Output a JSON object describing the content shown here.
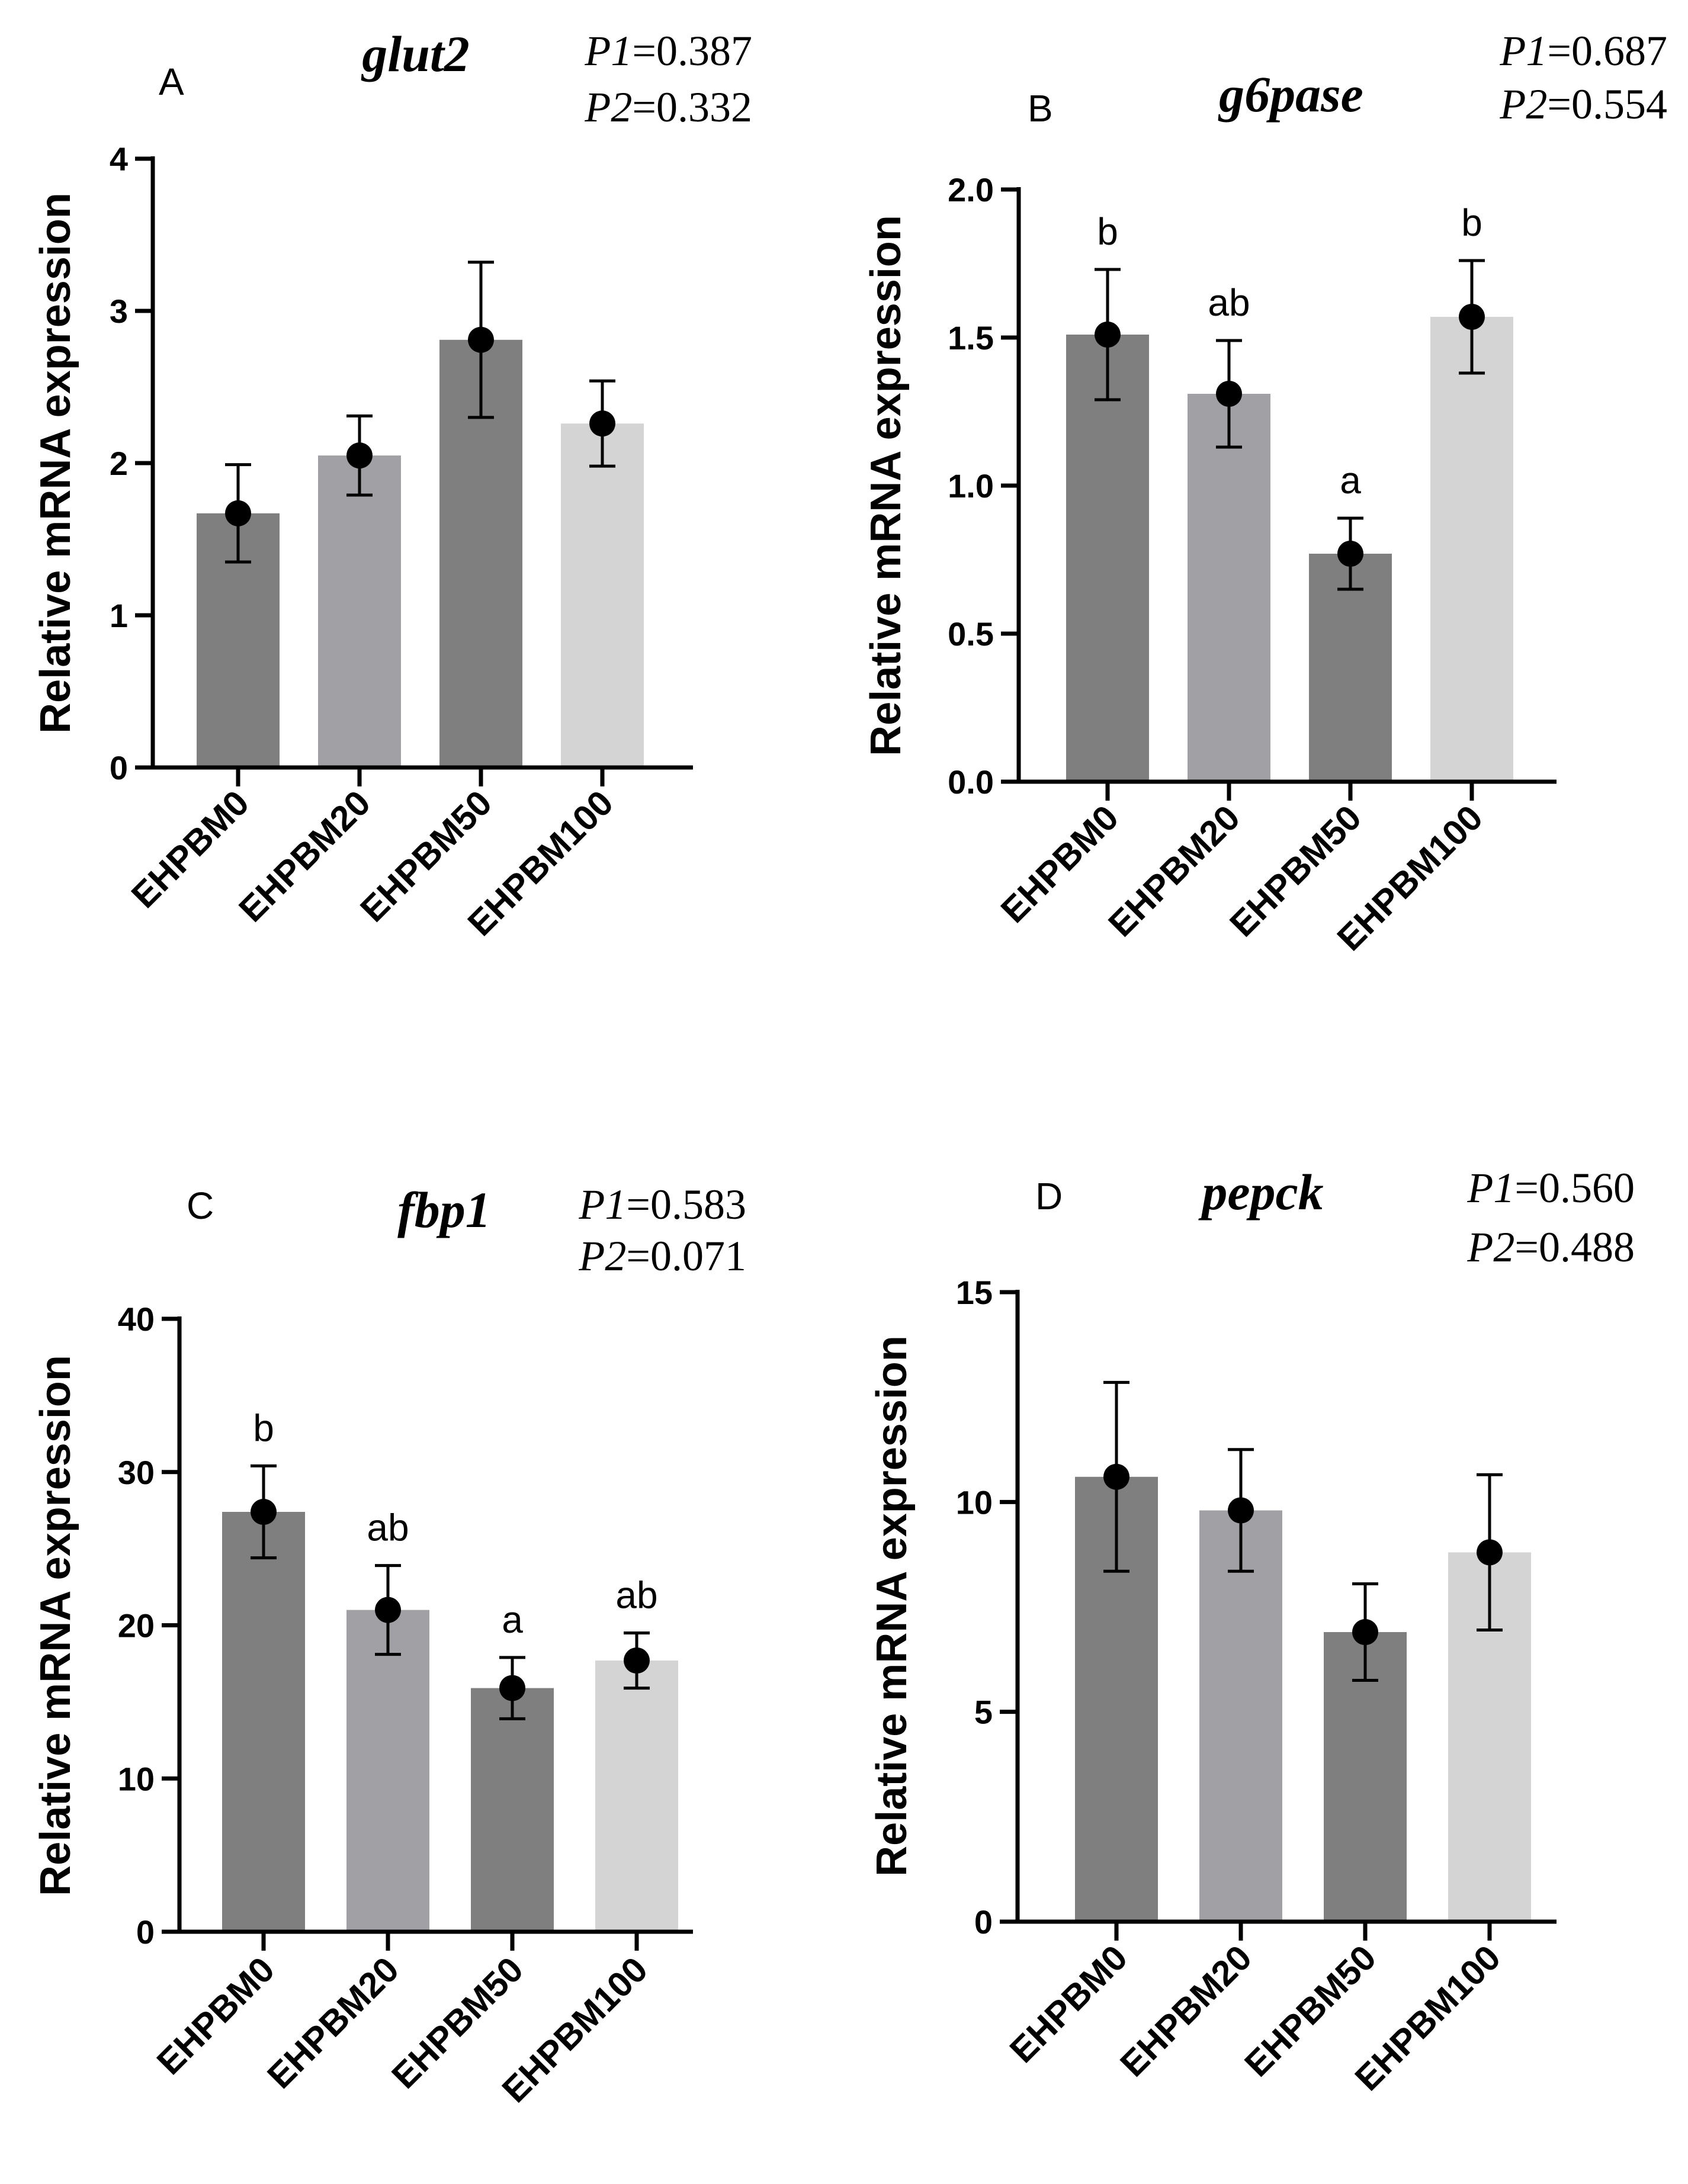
{
  "chart_data": [
    {
      "type": "bar",
      "panel": "A",
      "title": "glut2",
      "p_values": [
        {
          "label": "P1",
          "value": "=0.387"
        },
        {
          "label": "P2",
          "value": "=0.332"
        }
      ],
      "ylabel": "Relative mRNA expression",
      "ylim": [
        0,
        4
      ],
      "yticks": [
        0,
        1,
        2,
        3,
        4
      ],
      "categories": [
        "EHPBM0",
        "EHPBM20",
        "EHPBM50",
        "EHPBM100"
      ],
      "values": [
        1.67,
        2.05,
        2.81,
        2.26
      ],
      "errors": [
        0.32,
        0.26,
        0.51,
        0.28
      ],
      "sig_letters": [
        "",
        "",
        "",
        ""
      ],
      "colors": [
        "#7f7f7f",
        "#a1a1a5",
        "#7f7f7f",
        "#d4d4d4"
      ]
    },
    {
      "type": "bar",
      "panel": "B",
      "title": "g6pase",
      "p_values": [
        {
          "label": "P1",
          "value": "=0.687"
        },
        {
          "label": "P2",
          "value": "=0.554"
        }
      ],
      "ylabel": "Relative mRNA expression",
      "ylim": [
        0,
        2
      ],
      "yticks": [
        0.0,
        0.5,
        1.0,
        1.5,
        2.0
      ],
      "ytick_labels": [
        "0.0",
        "0.5",
        "1.0",
        "1.5",
        "2.0"
      ],
      "categories": [
        "EHPBM0",
        "EHPBM20",
        "EHPBM50",
        "EHPBM100"
      ],
      "values": [
        1.51,
        1.31,
        0.77,
        1.57
      ],
      "errors": [
        0.22,
        0.18,
        0.12,
        0.19
      ],
      "sig_letters": [
        "b",
        "ab",
        "a",
        "b"
      ],
      "colors": [
        "#7f7f7f",
        "#a1a1a5",
        "#7f7f7f",
        "#d4d4d4"
      ]
    },
    {
      "type": "bar",
      "panel": "C",
      "title": "fbp1",
      "p_values": [
        {
          "label": "P1",
          "value": "=0.583"
        },
        {
          "label": "P2",
          "value": "=0.071"
        }
      ],
      "ylabel": "Relative mRNA expression",
      "ylim": [
        0,
        40
      ],
      "yticks": [
        0,
        10,
        20,
        30,
        40
      ],
      "categories": [
        "EHPBM0",
        "EHPBM20",
        "EHPBM50",
        "EHPBM100"
      ],
      "values": [
        27.4,
        21.0,
        15.9,
        17.7
      ],
      "errors": [
        3.0,
        2.9,
        2.0,
        1.8
      ],
      "sig_letters": [
        "b",
        "ab",
        "a",
        "ab"
      ],
      "colors": [
        "#7f7f7f",
        "#a1a1a5",
        "#7f7f7f",
        "#d4d4d4"
      ]
    },
    {
      "type": "bar",
      "panel": "D",
      "title": "pepck",
      "p_values": [
        {
          "label": "P1",
          "value": "=0.560"
        },
        {
          "label": "P2",
          "value": "=0.488"
        }
      ],
      "ylabel": "Relative mRNA expression",
      "ylim": [
        0,
        15
      ],
      "yticks": [
        0,
        5,
        10,
        15
      ],
      "categories": [
        "EHPBM0",
        "EHPBM20",
        "EHPBM50",
        "EHPBM100"
      ],
      "values": [
        10.6,
        9.8,
        6.9,
        8.8
      ],
      "errors": [
        2.25,
        1.45,
        1.15,
        1.85
      ],
      "sig_letters": [
        "",
        "",
        "",
        ""
      ],
      "colors": [
        "#7f7f7f",
        "#a1a1a5",
        "#7f7f7f",
        "#d4d4d4"
      ]
    }
  ]
}
